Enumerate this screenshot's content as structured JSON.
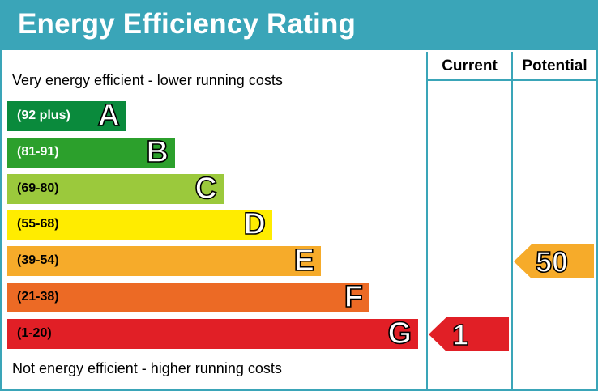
{
  "title": "Energy Efficiency Rating",
  "columns": {
    "current": "Current",
    "potential": "Potential"
  },
  "top_note": "Very energy efficient - lower running costs",
  "bottom_note": "Not energy efficient - higher running costs",
  "chart_data": {
    "type": "bar",
    "categories": [
      "A",
      "B",
      "C",
      "D",
      "E",
      "F",
      "G"
    ],
    "bands": [
      {
        "letter": "A",
        "range": "(92 plus)",
        "color": "#0a8a3c",
        "text_color": "#ffffff"
      },
      {
        "letter": "B",
        "range": "(81-91)",
        "color": "#2ca02c",
        "text_color": "#ffffff"
      },
      {
        "letter": "C",
        "range": "(69-80)",
        "color": "#9bc93c",
        "text_color": "#000000"
      },
      {
        "letter": "D",
        "range": "(55-68)",
        "color": "#ffec00",
        "text_color": "#000000"
      },
      {
        "letter": "E",
        "range": "(39-54)",
        "color": "#f6ab2a",
        "text_color": "#000000"
      },
      {
        "letter": "F",
        "range": "(21-38)",
        "color": "#ec6a25",
        "text_color": "#000000"
      },
      {
        "letter": "G",
        "range": "(1-20)",
        "color": "#e11f26",
        "text_color": "#000000"
      }
    ],
    "series": [
      {
        "name": "Current",
        "value": 1,
        "band": "G",
        "color": "#e11f26"
      },
      {
        "name": "Potential",
        "value": 50,
        "band": "E",
        "color": "#f6ab2a"
      }
    ]
  }
}
